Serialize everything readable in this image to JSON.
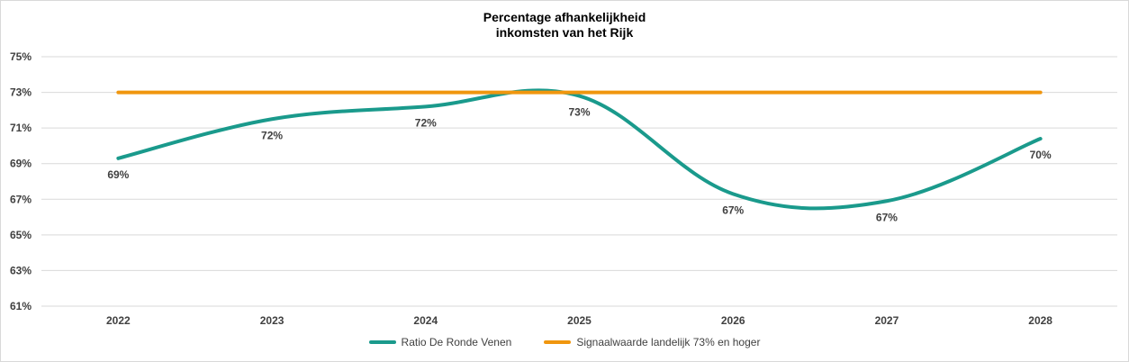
{
  "chart_data": {
    "type": "line",
    "title_lines": [
      "Percentage afhankelijkheid",
      "inkomsten van het Rijk"
    ],
    "categories": [
      "2022",
      "2023",
      "2024",
      "2025",
      "2026",
      "2027",
      "2028"
    ],
    "y_ticks": [
      "61%",
      "63%",
      "65%",
      "67%",
      "69%",
      "71%",
      "73%",
      "75%"
    ],
    "ylim": [
      61,
      75
    ],
    "grid": true,
    "legend_position": "bottom",
    "series": [
      {
        "name": "Ratio De Ronde Venen",
        "values": [
          69.3,
          71.5,
          72.2,
          72.8,
          67.3,
          66.9,
          70.4
        ],
        "labels": [
          "69%",
          "72%",
          "72%",
          "73%",
          "67%",
          "67%",
          "70%"
        ],
        "color": "#1a9a8c",
        "smooth": true
      },
      {
        "name": "Signaalwaarde landelijk 73% en hoger",
        "values": [
          73,
          73,
          73,
          73,
          73,
          73,
          73
        ],
        "color": "#f0960e"
      }
    ]
  }
}
